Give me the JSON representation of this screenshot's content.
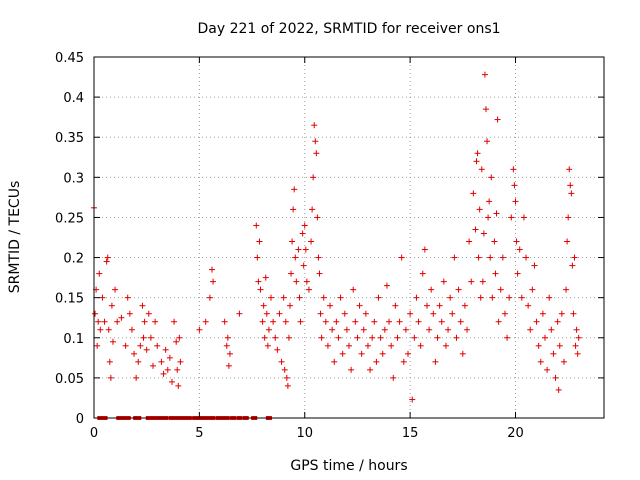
{
  "chart_data": {
    "type": "scatter",
    "title": "Day 221 of 2022, SRMTID for receiver ons1",
    "xlabel": "GPS time / hours",
    "ylabel": "SRMTID / TECUs",
    "xlim": [
      0,
      24.2
    ],
    "ylim": [
      0,
      0.45
    ],
    "xticks": [
      0,
      5,
      10,
      15,
      20
    ],
    "xtick_labels": [
      "0",
      "5",
      "10",
      "15",
      "20"
    ],
    "yticks": [
      0,
      0.05,
      0.1,
      0.15,
      0.2,
      0.25,
      0.3,
      0.35,
      0.4,
      0.45
    ],
    "ytick_labels": [
      "0",
      "0.05",
      "0.1",
      "0.15",
      "0.2",
      "0.25",
      "0.3",
      "0.35",
      "0.4",
      "0.45"
    ],
    "grid": true,
    "marker": "plus",
    "color": "#e00000",
    "zero_points_x": [
      0.3,
      0.4,
      0.5,
      1.2,
      1.4,
      1.6,
      2.0,
      2.1,
      2.6,
      2.8,
      3.0,
      3.2,
      3.4,
      3.7,
      3.9,
      4.1,
      4.3,
      4.5,
      4.8,
      5.0,
      5.2,
      5.4,
      5.6,
      5.9,
      6.1,
      6.3,
      6.6,
      6.9,
      7.2,
      7.6,
      8.3
    ],
    "series": [
      {
        "name": "SRMTID",
        "points": [
          [
            0.0,
            0.262
          ],
          [
            0.05,
            0.13
          ],
          [
            0.1,
            0.16
          ],
          [
            0.15,
            0.09
          ],
          [
            0.2,
            0.12
          ],
          [
            0.25,
            0.18
          ],
          [
            0.3,
            0.11
          ],
          [
            0.4,
            0.15
          ],
          [
            0.5,
            0.12
          ],
          [
            0.6,
            0.195
          ],
          [
            0.65,
            0.2
          ],
          [
            0.7,
            0.11
          ],
          [
            0.75,
            0.07
          ],
          [
            0.8,
            0.05
          ],
          [
            0.85,
            0.14
          ],
          [
            0.9,
            0.095
          ],
          [
            1.0,
            0.16
          ],
          [
            1.1,
            0.12
          ],
          [
            1.3,
            0.125
          ],
          [
            1.5,
            0.09
          ],
          [
            1.6,
            0.15
          ],
          [
            1.7,
            0.13
          ],
          [
            1.8,
            0.11
          ],
          [
            1.9,
            0.08
          ],
          [
            2.0,
            0.05
          ],
          [
            2.1,
            0.07
          ],
          [
            2.2,
            0.09
          ],
          [
            2.3,
            0.14
          ],
          [
            2.35,
            0.1
          ],
          [
            2.4,
            0.12
          ],
          [
            2.5,
            0.085
          ],
          [
            2.6,
            0.13
          ],
          [
            2.7,
            0.1
          ],
          [
            2.8,
            0.065
          ],
          [
            2.9,
            0.12
          ],
          [
            3.0,
            0.09
          ],
          [
            3.2,
            0.07
          ],
          [
            3.3,
            0.055
          ],
          [
            3.4,
            0.085
          ],
          [
            3.5,
            0.06
          ],
          [
            3.6,
            0.075
          ],
          [
            3.7,
            0.045
          ],
          [
            3.8,
            0.12
          ],
          [
            3.9,
            0.095
          ],
          [
            3.95,
            0.06
          ],
          [
            4.0,
            0.04
          ],
          [
            4.05,
            0.1
          ],
          [
            4.1,
            0.07
          ],
          [
            5.0,
            0.11
          ],
          [
            5.3,
            0.12
          ],
          [
            5.5,
            0.15
          ],
          [
            5.6,
            0.185
          ],
          [
            5.65,
            0.17
          ],
          [
            6.2,
            0.12
          ],
          [
            6.3,
            0.09
          ],
          [
            6.35,
            0.1
          ],
          [
            6.4,
            0.065
          ],
          [
            6.45,
            0.08
          ],
          [
            6.9,
            0.13
          ],
          [
            7.7,
            0.24
          ],
          [
            7.75,
            0.2
          ],
          [
            7.8,
            0.17
          ],
          [
            7.85,
            0.22
          ],
          [
            7.9,
            0.16
          ],
          [
            8.0,
            0.12
          ],
          [
            8.05,
            0.14
          ],
          [
            8.1,
            0.1
          ],
          [
            8.15,
            0.175
          ],
          [
            8.2,
            0.13
          ],
          [
            8.25,
            0.09
          ],
          [
            8.3,
            0.11
          ],
          [
            8.4,
            0.15
          ],
          [
            8.5,
            0.12
          ],
          [
            8.6,
            0.1
          ],
          [
            8.7,
            0.085
          ],
          [
            8.8,
            0.13
          ],
          [
            8.9,
            0.07
          ],
          [
            9.0,
            0.15
          ],
          [
            9.05,
            0.06
          ],
          [
            9.1,
            0.12
          ],
          [
            9.15,
            0.05
          ],
          [
            9.2,
            0.04
          ],
          [
            9.25,
            0.1
          ],
          [
            9.3,
            0.14
          ],
          [
            9.35,
            0.18
          ],
          [
            9.4,
            0.22
          ],
          [
            9.45,
            0.26
          ],
          [
            9.5,
            0.285
          ],
          [
            9.55,
            0.2
          ],
          [
            9.6,
            0.17
          ],
          [
            9.7,
            0.21
          ],
          [
            9.75,
            0.15
          ],
          [
            9.8,
            0.12
          ],
          [
            9.9,
            0.23
          ],
          [
            9.95,
            0.19
          ],
          [
            10.0,
            0.24
          ],
          [
            10.05,
            0.21
          ],
          [
            10.1,
            0.17
          ],
          [
            10.2,
            0.16
          ],
          [
            10.3,
            0.22
          ],
          [
            10.35,
            0.26
          ],
          [
            10.4,
            0.3
          ],
          [
            10.45,
            0.365
          ],
          [
            10.5,
            0.345
          ],
          [
            10.55,
            0.33
          ],
          [
            10.6,
            0.25
          ],
          [
            10.65,
            0.2
          ],
          [
            10.7,
            0.18
          ],
          [
            10.75,
            0.13
          ],
          [
            10.8,
            0.1
          ],
          [
            10.9,
            0.15
          ],
          [
            11.0,
            0.12
          ],
          [
            11.1,
            0.09
          ],
          [
            11.2,
            0.14
          ],
          [
            11.3,
            0.11
          ],
          [
            11.4,
            0.07
          ],
          [
            11.5,
            0.12
          ],
          [
            11.6,
            0.1
          ],
          [
            11.7,
            0.15
          ],
          [
            11.8,
            0.08
          ],
          [
            11.9,
            0.13
          ],
          [
            12.0,
            0.11
          ],
          [
            12.1,
            0.09
          ],
          [
            12.2,
            0.06
          ],
          [
            12.3,
            0.16
          ],
          [
            12.4,
            0.12
          ],
          [
            12.5,
            0.1
          ],
          [
            12.6,
            0.14
          ],
          [
            12.7,
            0.08
          ],
          [
            12.8,
            0.11
          ],
          [
            12.9,
            0.13
          ],
          [
            13.0,
            0.09
          ],
          [
            13.1,
            0.06
          ],
          [
            13.2,
            0.1
          ],
          [
            13.3,
            0.12
          ],
          [
            13.4,
            0.07
          ],
          [
            13.5,
            0.15
          ],
          [
            13.6,
            0.1
          ],
          [
            13.7,
            0.08
          ],
          [
            13.8,
            0.11
          ],
          [
            13.9,
            0.165
          ],
          [
            14.0,
            0.12
          ],
          [
            14.1,
            0.09
          ],
          [
            14.2,
            0.05
          ],
          [
            14.3,
            0.14
          ],
          [
            14.4,
            0.1
          ],
          [
            14.5,
            0.12
          ],
          [
            14.6,
            0.2
          ],
          [
            14.7,
            0.07
          ],
          [
            14.8,
            0.11
          ],
          [
            14.9,
            0.08
          ],
          [
            15.0,
            0.13
          ],
          [
            15.1,
            0.023
          ],
          [
            15.2,
            0.1
          ],
          [
            15.3,
            0.15
          ],
          [
            15.4,
            0.12
          ],
          [
            15.5,
            0.09
          ],
          [
            15.6,
            0.18
          ],
          [
            15.7,
            0.21
          ],
          [
            15.8,
            0.14
          ],
          [
            15.9,
            0.11
          ],
          [
            16.0,
            0.16
          ],
          [
            16.1,
            0.13
          ],
          [
            16.2,
            0.07
          ],
          [
            16.3,
            0.1
          ],
          [
            16.4,
            0.14
          ],
          [
            16.5,
            0.12
          ],
          [
            16.6,
            0.17
          ],
          [
            16.7,
            0.09
          ],
          [
            16.8,
            0.11
          ],
          [
            16.9,
            0.15
          ],
          [
            17.0,
            0.13
          ],
          [
            17.1,
            0.2
          ],
          [
            17.2,
            0.1
          ],
          [
            17.3,
            0.16
          ],
          [
            17.4,
            0.12
          ],
          [
            17.5,
            0.08
          ],
          [
            17.6,
            0.14
          ],
          [
            17.7,
            0.11
          ],
          [
            17.8,
            0.22
          ],
          [
            17.9,
            0.17
          ],
          [
            18.0,
            0.28
          ],
          [
            18.1,
            0.235
          ],
          [
            18.15,
            0.32
          ],
          [
            18.2,
            0.33
          ],
          [
            18.25,
            0.2
          ],
          [
            18.3,
            0.26
          ],
          [
            18.35,
            0.15
          ],
          [
            18.4,
            0.31
          ],
          [
            18.45,
            0.17
          ],
          [
            18.5,
            0.23
          ],
          [
            18.55,
            0.428
          ],
          [
            18.6,
            0.385
          ],
          [
            18.65,
            0.345
          ],
          [
            18.7,
            0.25
          ],
          [
            18.75,
            0.27
          ],
          [
            18.8,
            0.2
          ],
          [
            18.85,
            0.3
          ],
          [
            18.9,
            0.15
          ],
          [
            19.0,
            0.22
          ],
          [
            19.05,
            0.18
          ],
          [
            19.1,
            0.255
          ],
          [
            19.15,
            0.372
          ],
          [
            19.2,
            0.12
          ],
          [
            19.3,
            0.16
          ],
          [
            19.4,
            0.2
          ],
          [
            19.5,
            0.13
          ],
          [
            19.6,
            0.1
          ],
          [
            19.7,
            0.15
          ],
          [
            19.8,
            0.25
          ],
          [
            19.9,
            0.31
          ],
          [
            19.95,
            0.29
          ],
          [
            20.0,
            0.27
          ],
          [
            20.05,
            0.22
          ],
          [
            20.1,
            0.18
          ],
          [
            20.2,
            0.21
          ],
          [
            20.3,
            0.15
          ],
          [
            20.4,
            0.25
          ],
          [
            20.5,
            0.2
          ],
          [
            20.6,
            0.14
          ],
          [
            20.7,
            0.11
          ],
          [
            20.8,
            0.16
          ],
          [
            20.9,
            0.19
          ],
          [
            21.0,
            0.12
          ],
          [
            21.1,
            0.09
          ],
          [
            21.2,
            0.07
          ],
          [
            21.3,
            0.13
          ],
          [
            21.4,
            0.1
          ],
          [
            21.5,
            0.06
          ],
          [
            21.6,
            0.15
          ],
          [
            21.7,
            0.11
          ],
          [
            21.8,
            0.08
          ],
          [
            21.9,
            0.05
          ],
          [
            22.0,
            0.12
          ],
          [
            22.05,
            0.035
          ],
          [
            22.1,
            0.09
          ],
          [
            22.2,
            0.13
          ],
          [
            22.3,
            0.07
          ],
          [
            22.4,
            0.16
          ],
          [
            22.45,
            0.22
          ],
          [
            22.5,
            0.25
          ],
          [
            22.55,
            0.31
          ],
          [
            22.6,
            0.29
          ],
          [
            22.65,
            0.28
          ],
          [
            22.7,
            0.19
          ],
          [
            22.75,
            0.13
          ],
          [
            22.8,
            0.2
          ],
          [
            22.85,
            0.09
          ],
          [
            22.9,
            0.11
          ],
          [
            22.95,
            0.08
          ],
          [
            23.0,
            0.1
          ]
        ]
      }
    ]
  }
}
